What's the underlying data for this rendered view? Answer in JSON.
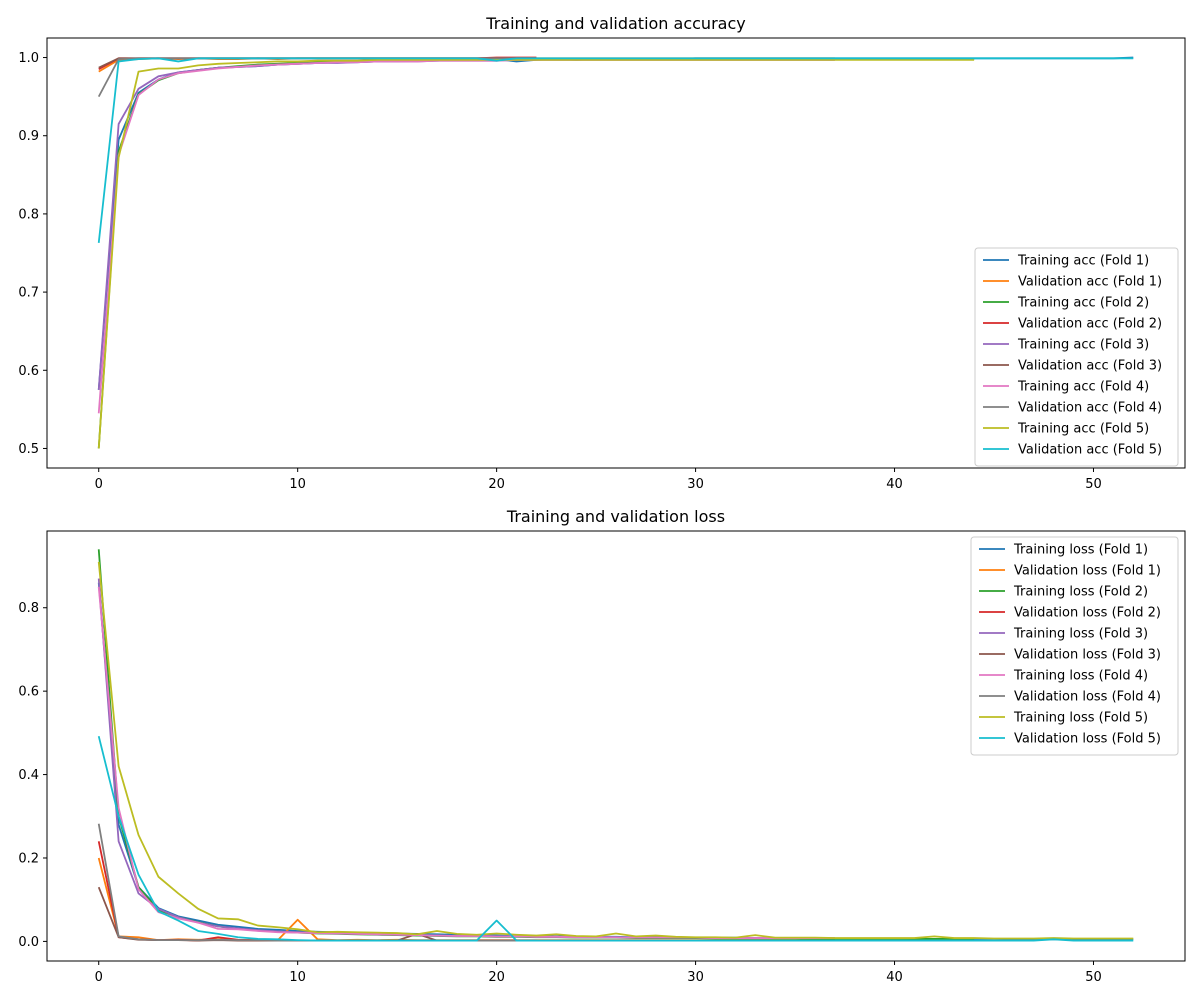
{
  "chart_data": [
    {
      "type": "line",
      "title": "Training and validation accuracy",
      "xlabel": "",
      "ylabel": "",
      "xlim": [
        -2.6,
        54.6
      ],
      "ylim": [
        0.475,
        1.025
      ],
      "xticks": [
        0,
        10,
        20,
        30,
        40,
        50
      ],
      "yticks": [
        0.5,
        0.6,
        0.7,
        0.8,
        0.9,
        1.0
      ],
      "ytick_labels": [
        "0.5",
        "0.6",
        "0.7",
        "0.8",
        "0.9",
        "1.0"
      ],
      "grid": false,
      "legend_position": "lower-right",
      "series": [
        {
          "name": "Training acc (Fold 1)",
          "color": "#1f77b4",
          "x_end": 52,
          "values": [
            0.575,
            0.895,
            0.955,
            0.972,
            0.981,
            0.984,
            0.987,
            0.988,
            0.989,
            0.991,
            0.992,
            0.993,
            0.994,
            0.994,
            0.995,
            0.995,
            0.996,
            0.996,
            0.997,
            0.997,
            0.998,
            0.995,
            0.997,
            0.998,
            0.997,
            0.998,
            0.998,
            0.998,
            0.998,
            0.998,
            0.999,
            0.999,
            0.999,
            0.999,
            0.999,
            0.999,
            0.999,
            0.999,
            0.999,
            0.999,
            0.999,
            0.999,
            0.999,
            0.999,
            0.999,
            0.999,
            0.999,
            0.999,
            0.999,
            0.999,
            0.999,
            0.999,
            1.0
          ]
        },
        {
          "name": "Validation acc (Fold 1)",
          "color": "#ff7f0e",
          "x_end": 37,
          "values": [
            0.982,
            0.997,
            0.998,
            0.999,
            0.998,
            0.999,
            0.998,
            0.998,
            0.999,
            0.998,
            0.999,
            0.999,
            0.999,
            0.999,
            0.999,
            0.999,
            0.999,
            0.999,
            0.999,
            0.999,
            0.999,
            0.999,
            0.999,
            0.999,
            0.999,
            0.999,
            0.999,
            0.999,
            0.999,
            0.999,
            0.999,
            0.999,
            0.999,
            0.999,
            0.999,
            0.999,
            0.999,
            0.999
          ]
        },
        {
          "name": "Training acc (Fold 2)",
          "color": "#2ca02c",
          "x_end": 44,
          "values": [
            0.5,
            0.88,
            0.953,
            0.971,
            0.98,
            0.984,
            0.987,
            0.989,
            0.991,
            0.992,
            0.993,
            0.994,
            0.995,
            0.995,
            0.996,
            0.996,
            0.996,
            0.997,
            0.997,
            0.997,
            0.998,
            0.997,
            0.998,
            0.998,
            0.998,
            0.998,
            0.998,
            0.998,
            0.998,
            0.998,
            0.998,
            0.998,
            0.998,
            0.998,
            0.998,
            0.998,
            0.998,
            0.998,
            0.998,
            0.998,
            0.998,
            0.998,
            0.998,
            0.998,
            0.998
          ]
        },
        {
          "name": "Validation acc (Fold 2)",
          "color": "#d62728",
          "x_end": 22,
          "values": [
            0.985,
            0.999,
            0.999,
            0.999,
            0.999,
            0.999,
            0.999,
            0.999,
            0.999,
            0.999,
            0.999,
            0.999,
            0.999,
            0.999,
            0.999,
            0.999,
            0.999,
            0.999,
            0.999,
            0.999,
            1.0,
            1.0,
            1.0
          ]
        },
        {
          "name": "Training acc (Fold 3)",
          "color": "#9467bd",
          "x_end": 37,
          "values": [
            0.575,
            0.915,
            0.96,
            0.976,
            0.981,
            0.984,
            0.987,
            0.988,
            0.989,
            0.991,
            0.992,
            0.993,
            0.993,
            0.994,
            0.995,
            0.995,
            0.995,
            0.996,
            0.996,
            0.996,
            0.996,
            0.997,
            0.997,
            0.997,
            0.997,
            0.997,
            0.997,
            0.997,
            0.997,
            0.997,
            0.997,
            0.997,
            0.997,
            0.997,
            0.997,
            0.997,
            0.997,
            0.997
          ]
        },
        {
          "name": "Validation acc (Fold 3)",
          "color": "#8c564b",
          "x_end": 22,
          "values": [
            0.987,
            0.999,
            0.999,
            0.999,
            0.999,
            0.999,
            0.999,
            0.999,
            0.999,
            0.999,
            0.999,
            0.999,
            0.999,
            0.999,
            0.999,
            0.999,
            0.999,
            0.999,
            0.999,
            0.999,
            0.999,
            0.999,
            0.999
          ]
        },
        {
          "name": "Training acc (Fold 4)",
          "color": "#e377c2",
          "x_end": 37,
          "values": [
            0.545,
            0.875,
            0.952,
            0.972,
            0.98,
            0.983,
            0.986,
            0.988,
            0.99,
            0.991,
            0.992,
            0.993,
            0.994,
            0.994,
            0.995,
            0.995,
            0.995,
            0.996,
            0.996,
            0.996,
            0.996,
            0.997,
            0.997,
            0.997,
            0.997,
            0.997,
            0.997,
            0.997,
            0.997,
            0.997,
            0.997,
            0.997,
            0.997,
            0.997,
            0.997,
            0.997,
            0.997,
            0.997
          ]
        },
        {
          "name": "Validation acc (Fold 4)",
          "color": "#7f7f7f",
          "x_end": 22,
          "values": [
            0.95,
            0.998,
            0.999,
            0.999,
            0.999,
            0.999,
            0.999,
            0.999,
            0.999,
            0.999,
            0.999,
            0.999,
            0.999,
            0.999,
            0.999,
            0.999,
            0.999,
            0.999,
            0.999,
            0.999,
            0.999,
            0.999,
            0.999
          ]
        },
        {
          "name": "Training acc (Fold 5)",
          "color": "#bcbd22",
          "x_end": 44,
          "values": [
            0.5,
            0.872,
            0.982,
            0.986,
            0.986,
            0.99,
            0.992,
            0.993,
            0.994,
            0.995,
            0.995,
            0.996,
            0.996,
            0.996,
            0.997,
            0.997,
            0.997,
            0.997,
            0.997,
            0.997,
            0.997,
            0.997,
            0.997,
            0.997,
            0.997,
            0.997,
            0.997,
            0.997,
            0.997,
            0.997,
            0.997,
            0.997,
            0.997,
            0.997,
            0.997,
            0.997,
            0.997,
            0.997,
            0.997,
            0.997,
            0.997,
            0.997,
            0.997,
            0.997,
            0.997
          ]
        },
        {
          "name": "Validation acc (Fold 5)",
          "color": "#17becf",
          "x_end": 52,
          "values": [
            0.763,
            0.995,
            0.998,
            0.999,
            0.995,
            0.999,
            0.999,
            0.999,
            0.999,
            0.999,
            0.999,
            0.999,
            0.999,
            0.999,
            0.999,
            0.999,
            0.999,
            0.999,
            0.999,
            0.999,
            0.996,
            0.999,
            0.999,
            0.999,
            0.999,
            0.999,
            0.999,
            0.999,
            0.999,
            0.999,
            0.999,
            0.999,
            0.999,
            0.999,
            0.999,
            0.999,
            0.999,
            0.999,
            0.999,
            0.999,
            0.999,
            0.999,
            0.999,
            0.999,
            0.999,
            0.999,
            0.999,
            0.999,
            0.999,
            0.999,
            0.999,
            0.999,
            0.999
          ]
        }
      ]
    },
    {
      "type": "line",
      "title": "Training and validation loss",
      "xlabel": "",
      "ylabel": "",
      "xlim": [
        -2.6,
        54.6
      ],
      "ylim": [
        -0.047,
        0.984
      ],
      "xticks": [
        0,
        10,
        20,
        30,
        40,
        50
      ],
      "yticks": [
        0.0,
        0.2,
        0.4,
        0.6,
        0.8
      ],
      "ytick_labels": [
        "0.0",
        "0.2",
        "0.4",
        "0.6",
        "0.8"
      ],
      "grid": false,
      "legend_position": "upper-right",
      "series": [
        {
          "name": "Training loss (Fold 1)",
          "color": "#1f77b4",
          "x_end": 52,
          "values": [
            0.86,
            0.28,
            0.13,
            0.08,
            0.06,
            0.05,
            0.04,
            0.035,
            0.03,
            0.028,
            0.025,
            0.023,
            0.022,
            0.021,
            0.02,
            0.019,
            0.018,
            0.017,
            0.016,
            0.015,
            0.014,
            0.013,
            0.013,
            0.012,
            0.012,
            0.011,
            0.011,
            0.01,
            0.01,
            0.01,
            0.009,
            0.009,
            0.009,
            0.008,
            0.008,
            0.008,
            0.008,
            0.007,
            0.007,
            0.007,
            0.007,
            0.006,
            0.006,
            0.006,
            0.006,
            0.006,
            0.005,
            0.005,
            0.005,
            0.005,
            0.005,
            0.005,
            0.005
          ]
        },
        {
          "name": "Validation loss (Fold 1)",
          "color": "#ff7f0e",
          "x_end": 37,
          "values": [
            0.2,
            0.012,
            0.01,
            0.003,
            0.005,
            0.004,
            0.005,
            0.003,
            0.004,
            0.003,
            0.052,
            0.005,
            0.003,
            0.004,
            0.003,
            0.004,
            0.003,
            0.003,
            0.003,
            0.003,
            0.003,
            0.003,
            0.003,
            0.003,
            0.003,
            0.003,
            0.003,
            0.003,
            0.003,
            0.003,
            0.003,
            0.003,
            0.003,
            0.003,
            0.003,
            0.003,
            0.003,
            0.003
          ]
        },
        {
          "name": "Training loss (Fold 2)",
          "color": "#2ca02c",
          "x_end": 44,
          "values": [
            0.94,
            0.3,
            0.13,
            0.075,
            0.058,
            0.046,
            0.036,
            0.03,
            0.026,
            0.023,
            0.021,
            0.019,
            0.018,
            0.017,
            0.016,
            0.015,
            0.014,
            0.013,
            0.012,
            0.012,
            0.011,
            0.011,
            0.01,
            0.01,
            0.009,
            0.009,
            0.009,
            0.008,
            0.008,
            0.008,
            0.008,
            0.007,
            0.007,
            0.007,
            0.007,
            0.007,
            0.006,
            0.006,
            0.006,
            0.006,
            0.006,
            0.006,
            0.006,
            0.006,
            0.006
          ]
        },
        {
          "name": "Validation loss (Fold 2)",
          "color": "#d62728",
          "x_end": 22,
          "values": [
            0.24,
            0.01,
            0.005,
            0.003,
            0.004,
            0.002,
            0.01,
            0.004,
            0.003,
            0.002,
            0.002,
            0.002,
            0.002,
            0.002,
            0.002,
            0.002,
            0.002,
            0.002,
            0.002,
            0.002,
            0.002,
            0.002,
            0.002
          ]
        },
        {
          "name": "Training loss (Fold 3)",
          "color": "#9467bd",
          "x_end": 37,
          "values": [
            0.87,
            0.24,
            0.115,
            0.078,
            0.058,
            0.045,
            0.036,
            0.031,
            0.027,
            0.024,
            0.022,
            0.02,
            0.019,
            0.018,
            0.017,
            0.016,
            0.015,
            0.014,
            0.013,
            0.013,
            0.012,
            0.012,
            0.011,
            0.011,
            0.01,
            0.01,
            0.01,
            0.009,
            0.009,
            0.009,
            0.009,
            0.008,
            0.008,
            0.008,
            0.008,
            0.008,
            0.008,
            0.008
          ]
        },
        {
          "name": "Validation loss (Fold 3)",
          "color": "#8c564b",
          "x_end": 22,
          "values": [
            0.13,
            0.01,
            0.004,
            0.003,
            0.003,
            0.002,
            0.003,
            0.002,
            0.002,
            0.002,
            0.002,
            0.002,
            0.002,
            0.002,
            0.002,
            0.002,
            0.018,
            0.002,
            0.002,
            0.002,
            0.002,
            0.002,
            0.002
          ]
        },
        {
          "name": "Training loss (Fold 4)",
          "color": "#e377c2",
          "x_end": 37,
          "values": [
            0.85,
            0.32,
            0.125,
            0.07,
            0.055,
            0.045,
            0.03,
            0.029,
            0.025,
            0.022,
            0.021,
            0.02,
            0.019,
            0.018,
            0.017,
            0.016,
            0.015,
            0.014,
            0.013,
            0.013,
            0.012,
            0.012,
            0.011,
            0.011,
            0.01,
            0.01,
            0.01,
            0.009,
            0.009,
            0.009,
            0.009,
            0.008,
            0.008,
            0.008,
            0.008,
            0.008,
            0.008,
            0.008
          ]
        },
        {
          "name": "Validation loss (Fold 4)",
          "color": "#7f7f7f",
          "x_end": 22,
          "values": [
            0.282,
            0.012,
            0.005,
            0.003,
            0.003,
            0.003,
            0.004,
            0.003,
            0.003,
            0.002,
            0.002,
            0.002,
            0.002,
            0.002,
            0.002,
            0.002,
            0.002,
            0.002,
            0.002,
            0.002,
            0.002,
            0.002,
            0.002
          ]
        },
        {
          "name": "Training loss (Fold 5)",
          "color": "#bcbd22",
          "x_end": 52,
          "values": [
            0.91,
            0.42,
            0.255,
            0.155,
            0.115,
            0.078,
            0.055,
            0.053,
            0.038,
            0.034,
            0.029,
            0.022,
            0.023,
            0.022,
            0.021,
            0.02,
            0.017,
            0.025,
            0.018,
            0.016,
            0.019,
            0.016,
            0.014,
            0.017,
            0.013,
            0.012,
            0.019,
            0.012,
            0.014,
            0.011,
            0.01,
            0.01,
            0.009,
            0.015,
            0.009,
            0.009,
            0.009,
            0.008,
            0.008,
            0.008,
            0.008,
            0.008,
            0.012,
            0.008,
            0.008,
            0.007,
            0.007,
            0.007,
            0.008,
            0.007,
            0.007,
            0.007,
            0.007
          ]
        },
        {
          "name": "Validation loss (Fold 5)",
          "color": "#17becf",
          "x_end": 52,
          "values": [
            0.492,
            0.3,
            0.16,
            0.072,
            0.05,
            0.025,
            0.018,
            0.01,
            0.006,
            0.005,
            0.003,
            0.002,
            0.002,
            0.002,
            0.002,
            0.002,
            0.002,
            0.002,
            0.002,
            0.002,
            0.05,
            0.002,
            0.002,
            0.002,
            0.002,
            0.002,
            0.002,
            0.002,
            0.002,
            0.002,
            0.002,
            0.002,
            0.002,
            0.002,
            0.002,
            0.002,
            0.002,
            0.002,
            0.002,
            0.002,
            0.002,
            0.002,
            0.002,
            0.002,
            0.002,
            0.002,
            0.002,
            0.002,
            0.005,
            0.002,
            0.002,
            0.002,
            0.002
          ]
        }
      ]
    }
  ]
}
